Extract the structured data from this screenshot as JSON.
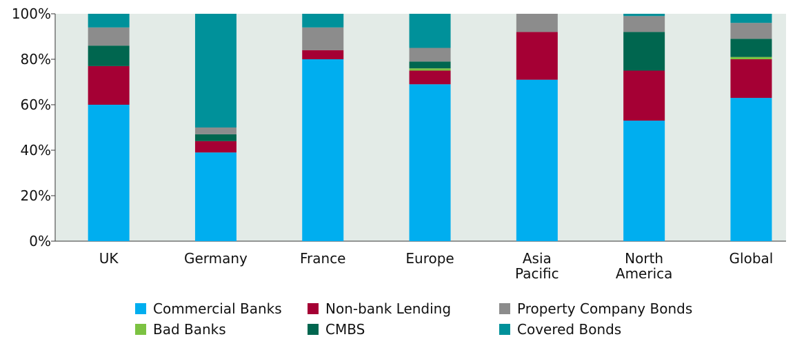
{
  "chart_data": {
    "type": "stacked_bar",
    "categories": [
      "UK",
      "Germany",
      "France",
      "Europe",
      "Asia Pacific",
      "North America",
      "Global"
    ],
    "series": [
      {
        "name": "Commercial Banks",
        "color": "#00aeef",
        "values": [
          60,
          39,
          80,
          69,
          71,
          53,
          63
        ]
      },
      {
        "name": "Non-bank Lending",
        "color": "#a50034",
        "values": [
          17,
          5,
          4,
          6,
          21,
          22,
          17
        ]
      },
      {
        "name": "Bad Banks",
        "color": "#7cc242",
        "values": [
          0,
          0,
          0,
          1,
          0,
          0,
          1
        ]
      },
      {
        "name": "CMBS",
        "color": "#00664f",
        "values": [
          9,
          3,
          0,
          3,
          0,
          17,
          8
        ]
      },
      {
        "name": "Property Company Bonds",
        "color": "#8c8c8c",
        "values": [
          8,
          3,
          10,
          6,
          8,
          7,
          7
        ]
      },
      {
        "name": "Covered Bonds",
        "color": "#00919a",
        "values": [
          6,
          50,
          6,
          15,
          0,
          1,
          4
        ]
      }
    ],
    "ylim": [
      0,
      100
    ],
    "yticks": [
      {
        "value": 0,
        "label": "0%"
      },
      {
        "value": 20,
        "label": "20%"
      },
      {
        "value": 40,
        "label": "40%"
      },
      {
        "value": 60,
        "label": "60%"
      },
      {
        "value": 80,
        "label": "80%"
      },
      {
        "value": 100,
        "label": "100%"
      }
    ],
    "background": "#e3ebe7"
  }
}
